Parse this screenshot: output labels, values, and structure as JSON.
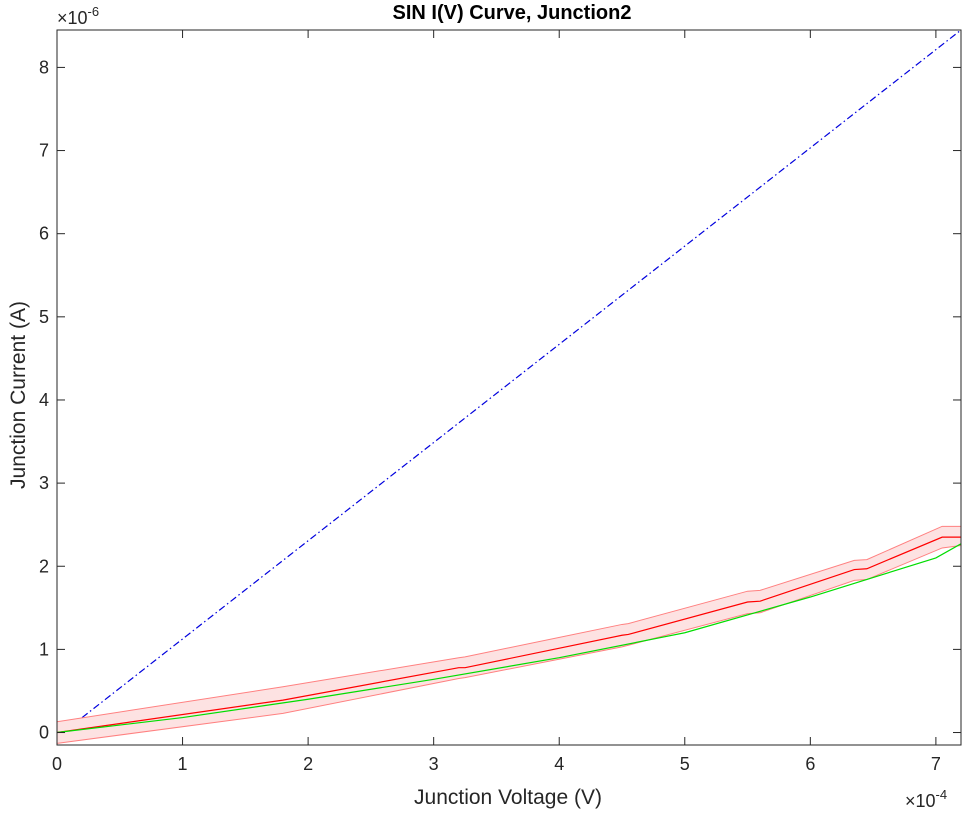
{
  "chart_data": {
    "type": "line",
    "title": "SIN I(V) Curve, Junction2",
    "xlabel": "Junction Voltage (V)",
    "ylabel": "Junction Current (A)",
    "x_exponent": {
      "base": "×10",
      "power": "-4"
    },
    "y_exponent": {
      "base": "×10",
      "power": "-6"
    },
    "x_scale": 0.0001,
    "y_scale": 1e-06,
    "xlim": [
      0,
      7.2
    ],
    "ylim": [
      -0.15,
      8.45
    ],
    "xticks": [
      0,
      1,
      2,
      3,
      4,
      5,
      6,
      7
    ],
    "xtick_labels": [
      "0",
      "1",
      "2",
      "3",
      "4",
      "5",
      "6",
      "7"
    ],
    "yticks": [
      0,
      1,
      2,
      3,
      4,
      5,
      6,
      7,
      8
    ],
    "ytick_labels": [
      "0",
      "1",
      "2",
      "3",
      "4",
      "5",
      "6",
      "7",
      "8"
    ],
    "grid": false,
    "colors": {
      "measured": "#ff0000",
      "band_fill": "#fde2e2",
      "band_edge": "#ff8080",
      "model": "#00dd00",
      "ohmic": "#0000dd",
      "axis": "#262626",
      "title": "#000000"
    },
    "series": [
      {
        "style": "dashdot",
        "color": "#0000dd",
        "x": [
          0.2,
          7.2
        ],
        "y": [
          0.18,
          8.45
        ]
      },
      {
        "style": "band",
        "color": "#fde2e2",
        "x": [
          0,
          1.8,
          3.2,
          3.25,
          4.5,
          4.55,
          5.5,
          5.6,
          6.35,
          6.45,
          7.05,
          7.2
        ],
        "upper": [
          0.13,
          0.55,
          0.9,
          0.91,
          1.3,
          1.31,
          1.7,
          1.71,
          2.07,
          2.08,
          2.48,
          2.48
        ],
        "lower": [
          -0.13,
          0.23,
          0.65,
          0.66,
          1.03,
          1.05,
          1.43,
          1.44,
          1.83,
          1.84,
          2.22,
          2.25
        ]
      },
      {
        "style": "solid",
        "color": "#ff0000",
        "x": [
          0,
          1.8,
          3.2,
          3.25,
          4.5,
          4.55,
          5.5,
          5.6,
          6.35,
          6.45,
          7.05,
          7.2
        ],
        "y": [
          0.0,
          0.39,
          0.78,
          0.78,
          1.17,
          1.18,
          1.57,
          1.58,
          1.96,
          1.97,
          2.35,
          2.35
        ]
      },
      {
        "style": "solid",
        "color": "#00dd00",
        "x": [
          0,
          1,
          2,
          3,
          4,
          5,
          6,
          7,
          7.2
        ],
        "y": [
          0.0,
          0.18,
          0.4,
          0.64,
          0.9,
          1.2,
          1.63,
          2.1,
          2.27
        ]
      }
    ]
  }
}
